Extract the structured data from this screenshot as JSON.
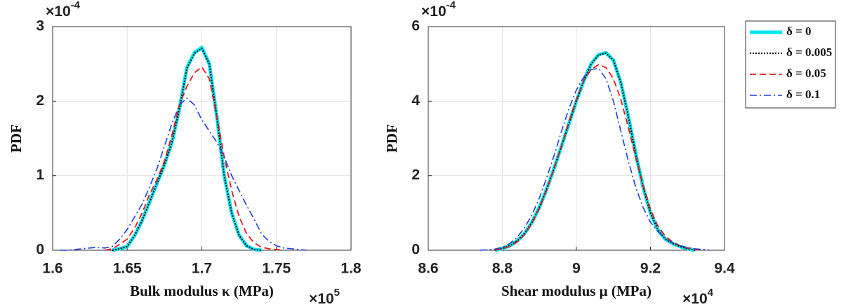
{
  "chart_data": [
    {
      "type": "line",
      "x_label": "Bulk modulus κ (MPa)",
      "y_label": "PDF",
      "x_scale": "×10",
      "x_scale_exp": "5",
      "y_scale": "×10",
      "y_scale_exp": "-4",
      "xlim": [
        1.6,
        1.8
      ],
      "ylim": [
        0,
        3
      ],
      "xticks": [
        1.6,
        1.65,
        1.7,
        1.75,
        1.8
      ],
      "yticks": [
        0,
        1,
        2,
        3
      ],
      "grid": true,
      "x": [
        1.605,
        1.61,
        1.615,
        1.62,
        1.625,
        1.63,
        1.635,
        1.64,
        1.645,
        1.65,
        1.655,
        1.66,
        1.665,
        1.67,
        1.675,
        1.68,
        1.685,
        1.69,
        1.695,
        1.7,
        1.705,
        1.71,
        1.715,
        1.72,
        1.725,
        1.73,
        1.735,
        1.74,
        1.745,
        1.75,
        1.755,
        1.76,
        1.765,
        1.77
      ],
      "series": [
        {
          "color": "#00e5ee",
          "dash": "solid",
          "width": 5,
          "values": [
            null,
            null,
            null,
            null,
            null,
            null,
            null,
            0,
            0.02,
            0.05,
            0.2,
            0.4,
            0.65,
            0.9,
            1.15,
            1.45,
            1.9,
            2.45,
            2.65,
            2.72,
            2.5,
            1.8,
            1.0,
            0.5,
            0.2,
            0.06,
            0.01,
            0,
            null,
            null,
            null,
            null,
            null,
            null
          ]
        },
        {
          "color": "#000000",
          "dash": "dotted",
          "width": 2,
          "values": [
            null,
            null,
            null,
            null,
            null,
            null,
            null,
            0,
            0.02,
            0.05,
            0.2,
            0.4,
            0.65,
            0.9,
            1.15,
            1.45,
            1.9,
            2.44,
            2.64,
            2.71,
            2.5,
            1.8,
            1.0,
            0.5,
            0.2,
            0.06,
            0.01,
            0,
            null,
            null,
            null,
            null,
            null,
            null
          ]
        },
        {
          "color": "#e41a1c",
          "dash": "dashed",
          "width": 1.8,
          "values": [
            null,
            null,
            null,
            null,
            null,
            null,
            0,
            0.02,
            0.08,
            0.15,
            0.3,
            0.5,
            0.75,
            0.95,
            1.2,
            1.55,
            1.95,
            2.2,
            2.38,
            2.46,
            2.3,
            1.8,
            1.25,
            0.8,
            0.45,
            0.22,
            0.1,
            0.04,
            0.02,
            0.01,
            0,
            null,
            null,
            null
          ]
        },
        {
          "color": "#1f3fd8",
          "dash": "dashdot",
          "width": 1.6,
          "values": [
            0,
            0,
            0.01,
            0.02,
            0.03,
            0.04,
            0.03,
            0.05,
            0.15,
            0.28,
            0.45,
            0.62,
            0.85,
            1.1,
            1.4,
            1.7,
            1.95,
            2.04,
            1.95,
            1.75,
            1.6,
            1.45,
            1.25,
            1.0,
            0.8,
            0.6,
            0.42,
            0.22,
            0.12,
            0.06,
            0.03,
            0.02,
            0.01,
            0
          ]
        }
      ]
    },
    {
      "type": "line",
      "x_label": "Shear modulus μ (MPa)",
      "y_label": "PDF",
      "x_scale": "×10",
      "x_scale_exp": "4",
      "y_scale": "×10",
      "y_scale_exp": "-4",
      "xlim": [
        8.6,
        9.4
      ],
      "ylim": [
        0,
        6
      ],
      "xticks": [
        8.6,
        8.8,
        9,
        9.2,
        9.4
      ],
      "yticks": [
        0,
        2,
        4,
        6
      ],
      "grid": true,
      "x": [
        8.74,
        8.76,
        8.78,
        8.8,
        8.82,
        8.84,
        8.86,
        8.88,
        8.9,
        8.92,
        8.94,
        8.96,
        8.98,
        9,
        9.02,
        9.04,
        9.06,
        9.08,
        9.1,
        9.12,
        9.14,
        9.16,
        9.18,
        9.2,
        9.22,
        9.24,
        9.26,
        9.28,
        9.3,
        9.32,
        9.34,
        9.36
      ],
      "series": [
        {
          "name": "δ = 0",
          "color": "#00e5ee",
          "dash": "solid",
          "width": 5,
          "values": [
            null,
            null,
            0,
            0.05,
            0.12,
            0.25,
            0.45,
            0.75,
            1.15,
            1.65,
            2.2,
            2.8,
            3.4,
            4.0,
            4.55,
            5.0,
            5.25,
            5.3,
            5.1,
            4.5,
            3.6,
            2.6,
            1.7,
            1.0,
            0.55,
            0.3,
            0.18,
            0.1,
            0.04,
            0,
            null,
            null
          ]
        },
        {
          "name": "δ = 0.005",
          "color": "#000000",
          "dash": "dotted",
          "width": 2,
          "values": [
            null,
            null,
            0,
            0.05,
            0.12,
            0.25,
            0.45,
            0.75,
            1.15,
            1.65,
            2.2,
            2.8,
            3.4,
            4.0,
            4.55,
            5.0,
            5.24,
            5.29,
            5.1,
            4.5,
            3.6,
            2.6,
            1.7,
            1.0,
            0.55,
            0.3,
            0.18,
            0.1,
            0.04,
            0,
            null,
            null
          ]
        },
        {
          "name": "δ = 0.05",
          "color": "#e41a1c",
          "dash": "dashed",
          "width": 1.8,
          "values": [
            null,
            null,
            0,
            0.04,
            0.1,
            0.22,
            0.42,
            0.72,
            1.12,
            1.62,
            2.2,
            2.8,
            3.45,
            4.05,
            4.55,
            4.85,
            4.98,
            4.9,
            4.6,
            4.05,
            3.3,
            2.5,
            1.75,
            1.1,
            0.65,
            0.38,
            0.22,
            0.12,
            0.06,
            0.02,
            0,
            null
          ]
        },
        {
          "name": "δ = 0.1",
          "color": "#1f3fd8",
          "dash": "dashdot",
          "width": 1.6,
          "values": [
            0,
            0.01,
            0.03,
            0.08,
            0.18,
            0.35,
            0.6,
            0.95,
            1.4,
            1.95,
            2.55,
            3.2,
            3.8,
            4.3,
            4.65,
            4.85,
            4.88,
            4.6,
            4.0,
            3.2,
            2.4,
            1.7,
            1.15,
            0.75,
            0.5,
            0.32,
            0.2,
            0.12,
            0.07,
            0.04,
            0.02,
            0
          ]
        }
      ]
    }
  ]
}
